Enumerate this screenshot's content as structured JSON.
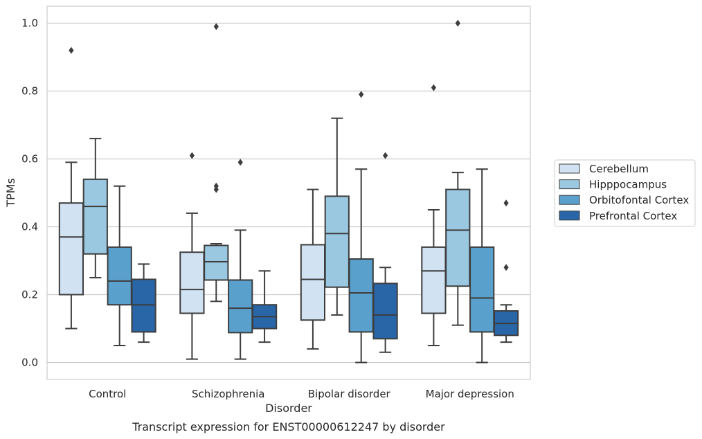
{
  "chart_data": {
    "type": "box",
    "title": "",
    "caption": "Transcript expression for ENST00000612247 by disorder",
    "xlabel": "Disorder",
    "ylabel": "TPMs",
    "ylim": [
      -0.05,
      1.05
    ],
    "yticks": [
      0.0,
      0.2,
      0.4,
      0.6,
      0.8,
      1.0
    ],
    "ytick_labels": [
      "0.0",
      "0.2",
      "0.4",
      "0.6",
      "0.8",
      "1.0"
    ],
    "grid": "horizontal",
    "legend_position": "right",
    "categories": [
      "Control",
      "Schizophrenia",
      "Bipolar disorder",
      "Major depression"
    ],
    "series": [
      {
        "name": "Cerebellum",
        "color": "#d1e2f2",
        "boxes": [
          {
            "whislo": 0.1,
            "q1": 0.2,
            "med": 0.37,
            "q3": 0.47,
            "whishi": 0.59,
            "fliers": [
              0.92
            ]
          },
          {
            "whislo": 0.01,
            "q1": 0.145,
            "med": 0.215,
            "q3": 0.325,
            "whishi": 0.44,
            "fliers": [
              0.61
            ]
          },
          {
            "whislo": 0.04,
            "q1": 0.125,
            "med": 0.245,
            "q3": 0.347,
            "whishi": 0.51,
            "fliers": []
          },
          {
            "whislo": 0.05,
            "q1": 0.145,
            "med": 0.27,
            "q3": 0.34,
            "whishi": 0.45,
            "fliers": [
              0.81
            ]
          }
        ]
      },
      {
        "name": "Hipppocampus",
        "color": "#9ac8e0",
        "boxes": [
          {
            "whislo": 0.25,
            "q1": 0.32,
            "med": 0.46,
            "q3": 0.54,
            "whishi": 0.66,
            "fliers": []
          },
          {
            "whislo": 0.18,
            "q1": 0.243,
            "med": 0.297,
            "q3": 0.345,
            "whishi": 0.35,
            "fliers": [
              0.51,
              0.52,
              0.99
            ]
          },
          {
            "whislo": 0.14,
            "q1": 0.222,
            "med": 0.38,
            "q3": 0.49,
            "whishi": 0.72,
            "fliers": []
          },
          {
            "whislo": 0.11,
            "q1": 0.225,
            "med": 0.39,
            "q3": 0.51,
            "whishi": 0.56,
            "fliers": [
              1.0
            ]
          }
        ]
      },
      {
        "name": "Orbitofontal Cortex",
        "color": "#5aa0cd",
        "boxes": [
          {
            "whislo": 0.05,
            "q1": 0.17,
            "med": 0.24,
            "q3": 0.34,
            "whishi": 0.52,
            "fliers": []
          },
          {
            "whislo": 0.01,
            "q1": 0.088,
            "med": 0.16,
            "q3": 0.243,
            "whishi": 0.39,
            "fliers": [
              0.59
            ]
          },
          {
            "whislo": 0.0,
            "q1": 0.09,
            "med": 0.205,
            "q3": 0.305,
            "whishi": 0.57,
            "fliers": [
              0.79
            ]
          },
          {
            "whislo": 0.0,
            "q1": 0.09,
            "med": 0.19,
            "q3": 0.34,
            "whishi": 0.57,
            "fliers": []
          }
        ]
      },
      {
        "name": "Prefrontal Cortex",
        "color": "#2966a8",
        "boxes": [
          {
            "whislo": 0.06,
            "q1": 0.09,
            "med": 0.17,
            "q3": 0.245,
            "whishi": 0.29,
            "fliers": []
          },
          {
            "whislo": 0.06,
            "q1": 0.1,
            "med": 0.135,
            "q3": 0.17,
            "whishi": 0.27,
            "fliers": []
          },
          {
            "whislo": 0.03,
            "q1": 0.07,
            "med": 0.14,
            "q3": 0.233,
            "whishi": 0.28,
            "fliers": [
              0.61
            ]
          },
          {
            "whislo": 0.06,
            "q1": 0.08,
            "med": 0.115,
            "q3": 0.152,
            "whishi": 0.17,
            "fliers": [
              0.28,
              0.47
            ]
          }
        ]
      }
    ]
  }
}
